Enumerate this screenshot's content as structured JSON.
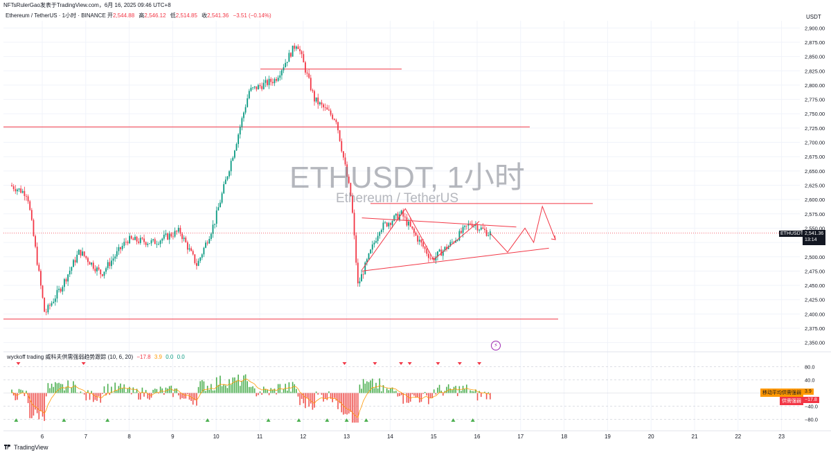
{
  "header": {
    "publisher_line": "NFTsRulerGao发表于TradingView.com，6月 16, 2025 09:46 UTC+8"
  },
  "symbol": {
    "description": "Ethereum / TetherUS · 1小时 · BINANCE",
    "open_label": "开",
    "open": "2,544.88",
    "high_label": "高",
    "high": "2,546.12",
    "low_label": "低",
    "low": "2,514.85",
    "close_label": "收",
    "close": "2,541.36",
    "change": "−3.51 (−0.14%)"
  },
  "watermark": {
    "title": "ETHUSDT, 1小时",
    "subtitle": "Ethereum / TetherUS"
  },
  "price_axis": {
    "currency": "USDT"
  },
  "last_price": {
    "symbol": "ETHUSDT",
    "price": "2,541.36",
    "countdown": "13:14"
  },
  "indicator": {
    "name": "wyckoff trading 威科夫供需强弱趋势跟踪 (10, 6, 20)",
    "v1": "−17.8",
    "v2": "3.9",
    "v3": "0.0",
    "v4": "0.0",
    "tag_ma_label": "移动平均供需强弱",
    "tag_ma_value": "3.9",
    "tag_sd_label": "供需强弱",
    "tag_sd_value": "−17.8"
  },
  "footer": {
    "logo_text": "TradingView"
  },
  "colors": {
    "up": "#089981",
    "down": "#f23645",
    "indicator_up": "#4caf50",
    "indicator_down": "#ef5350",
    "ma_line": "#ff9800",
    "drawing": "#f23645"
  },
  "chart_data": {
    "type": "candlestick",
    "title": "ETHUSDT, 1小时",
    "subtitle": "Ethereum / TetherUS",
    "ylabel": "USDT",
    "ylim": [
      2337.5,
      2912.5
    ],
    "y_ticks": [
      "2,900.00",
      "2,875.00",
      "2,850.00",
      "2,825.00",
      "2,800.00",
      "2,775.00",
      "2,750.00",
      "2,725.00",
      "2,700.00",
      "2,675.00",
      "2,650.00",
      "2,625.00",
      "2,600.00",
      "2,575.00",
      "2,550.00",
      "2,525.00",
      "2,500.00",
      "2,475.00",
      "2,450.00",
      "2,425.00",
      "2,400.00",
      "2,375.00",
      "2,350.00"
    ],
    "x_ticks": [
      "6",
      "7",
      "8",
      "9",
      "10",
      "11",
      "12",
      "13",
      "14",
      "15",
      "16",
      "17",
      "18",
      "19",
      "20",
      "21",
      "22",
      "23"
    ],
    "price_path_daily": [
      {
        "day": 5.3,
        "price": 2625
      },
      {
        "day": 5.7,
        "price": 2610
      },
      {
        "day": 6.1,
        "price": 2400
      },
      {
        "day": 6.5,
        "price": 2450
      },
      {
        "day": 6.9,
        "price": 2510
      },
      {
        "day": 7.4,
        "price": 2470
      },
      {
        "day": 8.0,
        "price": 2530
      },
      {
        "day": 8.6,
        "price": 2525
      },
      {
        "day": 9.2,
        "price": 2545
      },
      {
        "day": 9.6,
        "price": 2485
      },
      {
        "day": 10.0,
        "price": 2560
      },
      {
        "day": 10.5,
        "price": 2700
      },
      {
        "day": 10.8,
        "price": 2790
      },
      {
        "day": 11.4,
        "price": 2810
      },
      {
        "day": 11.9,
        "price": 2875
      },
      {
        "day": 12.3,
        "price": 2775
      },
      {
        "day": 12.8,
        "price": 2740
      },
      {
        "day": 13.15,
        "price": 2600
      },
      {
        "day": 13.3,
        "price": 2450
      },
      {
        "day": 13.8,
        "price": 2550
      },
      {
        "day": 14.3,
        "price": 2575
      },
      {
        "day": 14.6,
        "price": 2540
      },
      {
        "day": 15.0,
        "price": 2495
      },
      {
        "day": 15.4,
        "price": 2520
      },
      {
        "day": 15.9,
        "price": 2560
      },
      {
        "day": 16.3,
        "price": 2541
      }
    ],
    "horizontal_levels": [
      2828,
      2727,
      2593,
      2391
    ],
    "projected_path": [
      {
        "day": 16.3,
        "price": 2541
      },
      {
        "day": 16.7,
        "price": 2508
      },
      {
        "day": 17.1,
        "price": 2550
      },
      {
        "day": 17.3,
        "price": 2525
      },
      {
        "day": 17.5,
        "price": 2588
      },
      {
        "day": 17.8,
        "price": 2530
      }
    ],
    "indicator_scale": {
      "ylim": [
        -100,
        100
      ],
      "ticks": [
        "80.0",
        "40.0",
        "−40.0",
        "−80.0"
      ]
    },
    "grid": true
  }
}
